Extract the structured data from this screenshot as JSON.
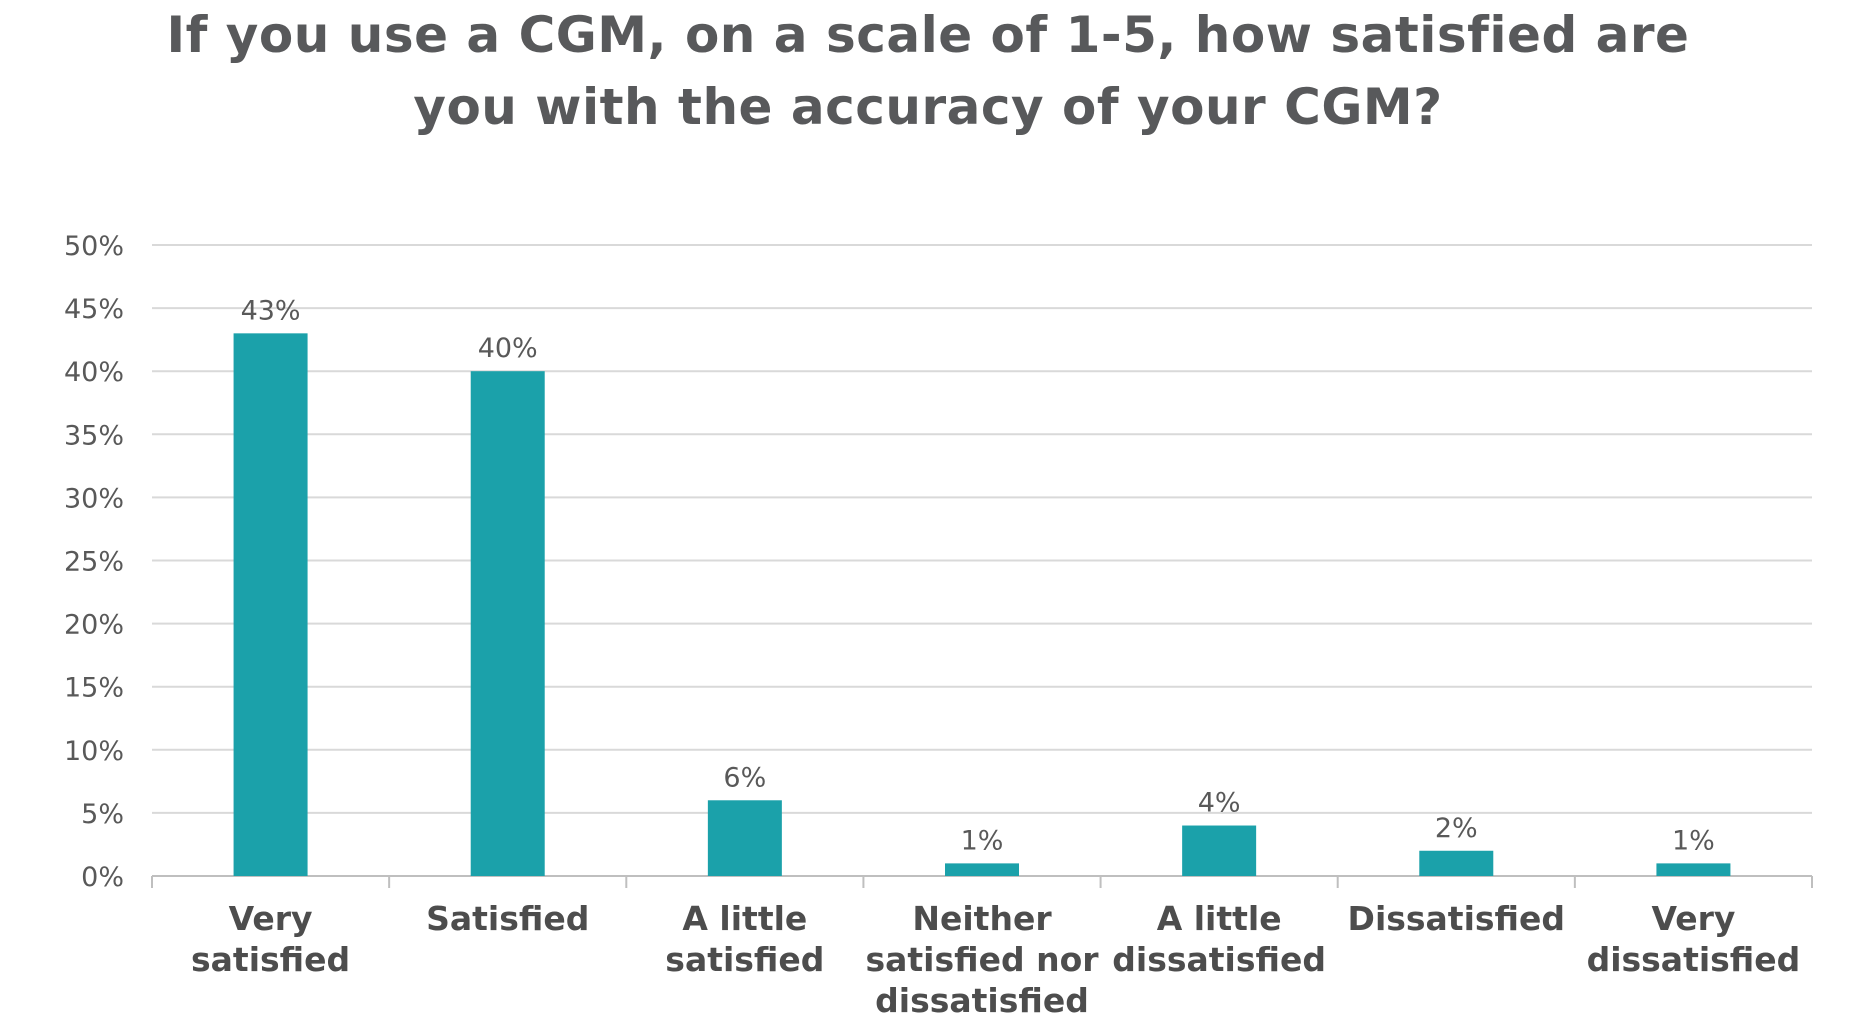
{
  "chart_data": {
    "type": "bar",
    "title_lines": [
      "If you use a CGM, on a scale of 1-5, how satisfied are",
      "you with the accuracy of your CGM?"
    ],
    "categories": [
      [
        "Very",
        "satisfied"
      ],
      [
        "Satisfied"
      ],
      [
        "A little",
        "satisfied"
      ],
      [
        "Neither",
        "satisfied nor",
        "dissatisfied"
      ],
      [
        "A little",
        "dissatisfied"
      ],
      [
        "Dissatisfied"
      ],
      [
        "Very",
        "dissatisfied"
      ]
    ],
    "values": [
      43,
      40,
      6,
      1,
      4,
      2,
      1
    ],
    "data_labels": [
      "43%",
      "40%",
      "6%",
      "1%",
      "4%",
      "2%",
      "1%"
    ],
    "ylim": [
      0,
      50
    ],
    "y_ticks": [
      0,
      5,
      10,
      15,
      20,
      25,
      30,
      35,
      40,
      45,
      50
    ],
    "y_tick_labels": [
      "0%",
      "5%",
      "10%",
      "15%",
      "20%",
      "25%",
      "30%",
      "35%",
      "40%",
      "45%",
      "50%"
    ],
    "grid": true,
    "bar_color": "#1ba1aa",
    "grid_color": "#d9d9d9",
    "axis_color": "#bfbfbf",
    "tick_label_color": "#595959",
    "category_label_color": "#4d4d4d",
    "title_color": "#58595b"
  }
}
